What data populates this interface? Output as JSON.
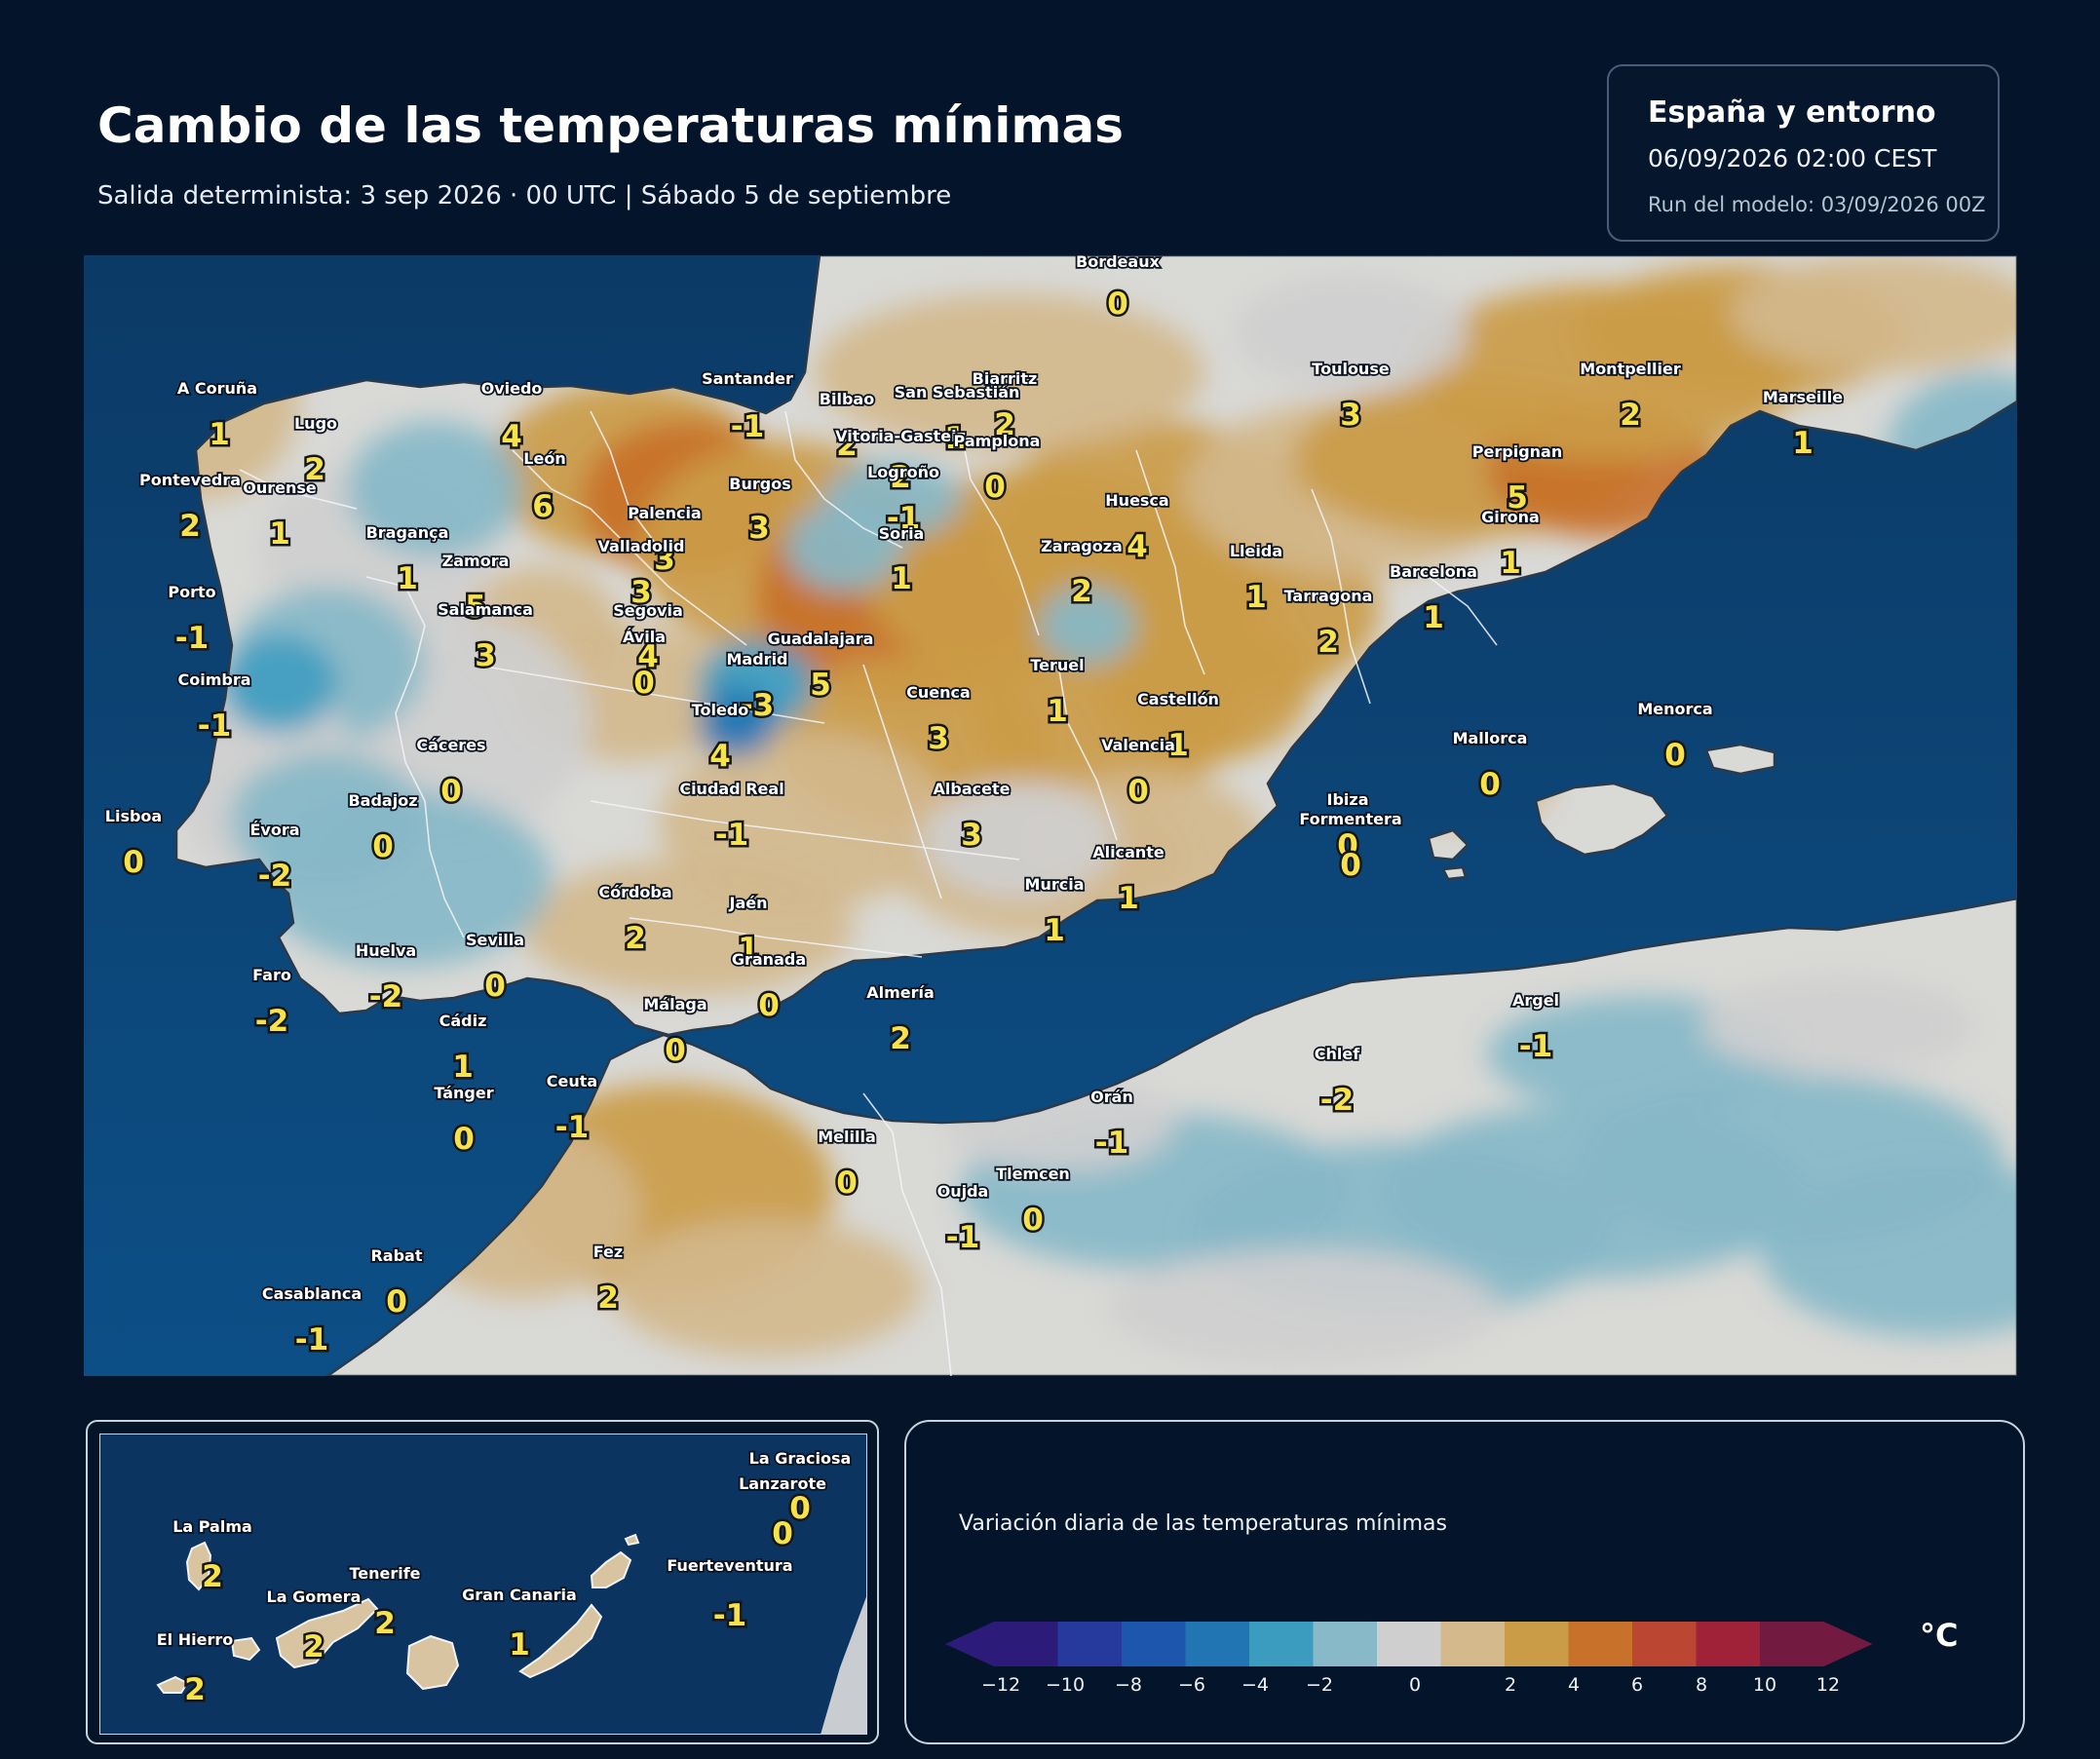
{
  "header": {
    "title": "Cambio de las temperaturas mínimas",
    "subtitle": "Salida determinista: 3 sep 2026 · 00 UTC  |  Sábado 5 de septiembre"
  },
  "info": {
    "region": "España y entorno",
    "valid_time": "06/09/2026  02:00 CEST",
    "model_run": "Run del modelo: 03/09/2026 00Z"
  },
  "map": {
    "cities": [
      {
        "name": "Bordeaux",
        "value": "0"
      },
      {
        "name": "A Coruña",
        "value": "1"
      },
      {
        "name": "Lugo",
        "value": "2"
      },
      {
        "name": "Oviedo",
        "value": "4"
      },
      {
        "name": "Santander",
        "value": "-1"
      },
      {
        "name": "Bilbao",
        "value": "2"
      },
      {
        "name": "San Sebastián",
        "value": "1"
      },
      {
        "name": "Biarritz",
        "value": "2"
      },
      {
        "name": "Vitoria-Gasteiz",
        "value": "2"
      },
      {
        "name": "Pamplona",
        "value": "0"
      },
      {
        "name": "Toulouse",
        "value": "3"
      },
      {
        "name": "Montpellier",
        "value": "2"
      },
      {
        "name": "Marseille",
        "value": "1"
      },
      {
        "name": "Pontevedra",
        "value": "2"
      },
      {
        "name": "Ourense",
        "value": "1"
      },
      {
        "name": "León",
        "value": "6"
      },
      {
        "name": "Burgos",
        "value": "3"
      },
      {
        "name": "Logroño",
        "value": "-1"
      },
      {
        "name": "Soria",
        "value": "1"
      },
      {
        "name": "Huesca",
        "value": "4"
      },
      {
        "name": "Perpignan",
        "value": "5"
      },
      {
        "name": "Palencia",
        "value": "3"
      },
      {
        "name": "Bragança",
        "value": "1"
      },
      {
        "name": "Valladolid",
        "value": "3"
      },
      {
        "name": "Zaragoza",
        "value": "2"
      },
      {
        "name": "Lleida",
        "value": "1"
      },
      {
        "name": "Girona",
        "value": "1"
      },
      {
        "name": "Zamora",
        "value": "5"
      },
      {
        "name": "Barcelona",
        "value": "1"
      },
      {
        "name": "Porto",
        "value": "-1"
      },
      {
        "name": "Salamanca",
        "value": "3"
      },
      {
        "name": "Segovia",
        "value": "4"
      },
      {
        "name": "Tarragona",
        "value": "2"
      },
      {
        "name": "Ávila",
        "value": "0"
      },
      {
        "name": "Guadalajara",
        "value": "5"
      },
      {
        "name": "Madrid",
        "value": "-3"
      },
      {
        "name": "Coimbra",
        "value": "-1"
      },
      {
        "name": "Teruel",
        "value": "1"
      },
      {
        "name": "Cuenca",
        "value": "3"
      },
      {
        "name": "Toledo",
        "value": "4"
      },
      {
        "name": "Castellón",
        "value": "1"
      },
      {
        "name": "Cáceres",
        "value": "0"
      },
      {
        "name": "Valencia",
        "value": "0"
      },
      {
        "name": "Mallorca",
        "value": "0"
      },
      {
        "name": "Menorca",
        "value": "0"
      },
      {
        "name": "Ciudad Real",
        "value": "-1"
      },
      {
        "name": "Albacete",
        "value": "3"
      },
      {
        "name": "Badajoz",
        "value": "0"
      },
      {
        "name": "Ibiza",
        "value": "0"
      },
      {
        "name": "Formentera",
        "value": "0"
      },
      {
        "name": "Lisboa",
        "value": "0"
      },
      {
        "name": "Évora",
        "value": "-2"
      },
      {
        "name": "Alicante",
        "value": "1"
      },
      {
        "name": "Murcia",
        "value": "1"
      },
      {
        "name": "Córdoba",
        "value": "2"
      },
      {
        "name": "Jaén",
        "value": "1"
      },
      {
        "name": "Huelva",
        "value": "-2"
      },
      {
        "name": "Sevilla",
        "value": "0"
      },
      {
        "name": "Granada",
        "value": "0"
      },
      {
        "name": "Faro",
        "value": "-2"
      },
      {
        "name": "Almería",
        "value": "2"
      },
      {
        "name": "Málaga",
        "value": "0"
      },
      {
        "name": "Cádiz",
        "value": "1"
      },
      {
        "name": "Argel",
        "value": "-1"
      },
      {
        "name": "Chlef",
        "value": "-2"
      },
      {
        "name": "Tánger",
        "value": "0"
      },
      {
        "name": "Ceuta",
        "value": "-1"
      },
      {
        "name": "Orán",
        "value": "-1"
      },
      {
        "name": "Melilla",
        "value": "0"
      },
      {
        "name": "Oujda",
        "value": "-1"
      },
      {
        "name": "Tlemcen",
        "value": "0"
      },
      {
        "name": "Rabat",
        "value": "0"
      },
      {
        "name": "Fez",
        "value": "2"
      },
      {
        "name": "Casablanca",
        "value": "-1"
      }
    ]
  },
  "inset": {
    "cities": [
      {
        "name": "La Graciosa",
        "value": "0"
      },
      {
        "name": "Lanzarote",
        "value": "0"
      },
      {
        "name": "La Palma",
        "value": "2"
      },
      {
        "name": "Fuerteventura",
        "value": "-1"
      },
      {
        "name": "Tenerife",
        "value": "2"
      },
      {
        "name": "La Gomera",
        "value": "2"
      },
      {
        "name": "Gran Canaria",
        "value": "1"
      },
      {
        "name": "El Hierro",
        "value": "2"
      }
    ]
  },
  "legend": {
    "title": "Variación diaria de las temperaturas mínimas",
    "unit": "°C",
    "colors": [
      "#2c1b78",
      "#263a9e",
      "#1c56ad",
      "#2275b3",
      "#3b9cc0",
      "#87b9c8",
      "#cfcfcf",
      "#d3b98c",
      "#cb9c48",
      "#c8712a",
      "#bb4632",
      "#9f2238",
      "#731a41"
    ],
    "ticks": [
      "−12",
      "−10",
      "−8",
      "−6",
      "−4",
      "−2",
      "0",
      "2",
      "4",
      "6",
      "8",
      "10",
      "12"
    ]
  },
  "scalar_field": {
    "variable": "Cambio de las temperaturas mínimas",
    "unit": "°C",
    "range": [
      -12,
      12
    ]
  }
}
